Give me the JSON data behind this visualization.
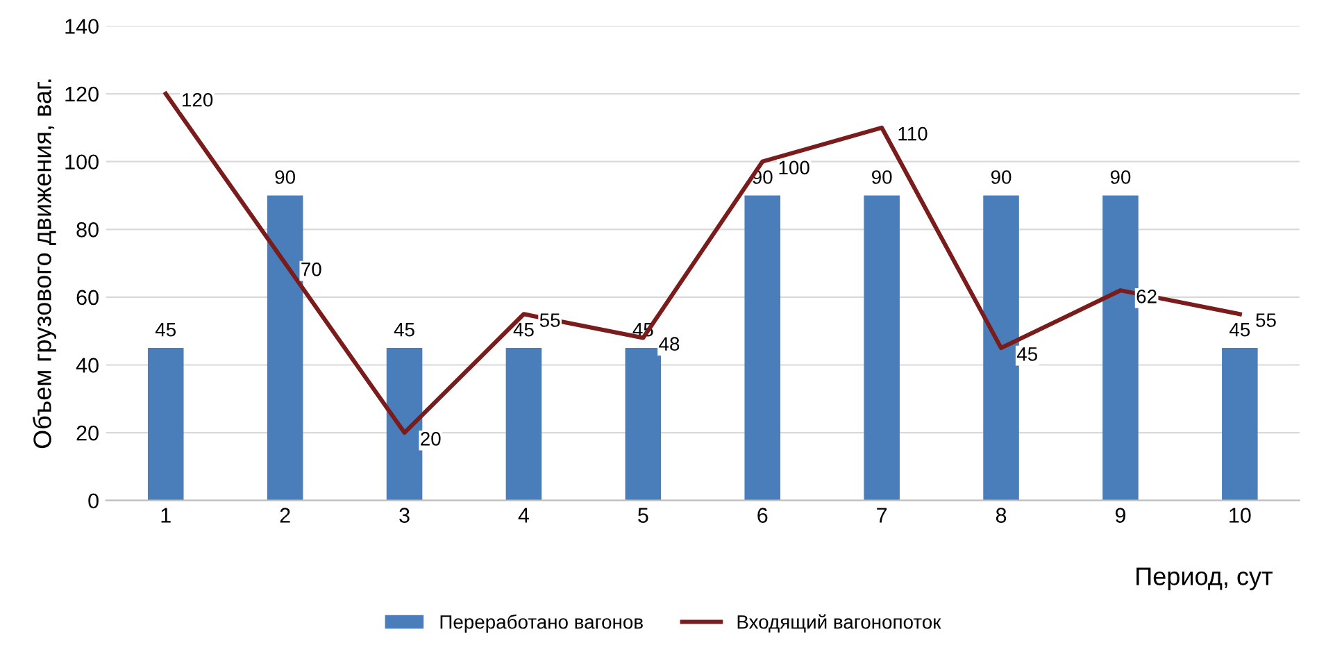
{
  "chart_data": {
    "type": "bar",
    "categories": [
      "1",
      "2",
      "3",
      "4",
      "5",
      "6",
      "7",
      "8",
      "9",
      "10"
    ],
    "series": [
      {
        "name": "Переработано вагонов",
        "color": "#4a7ebb",
        "values": [
          45,
          90,
          45,
          45,
          45,
          90,
          90,
          90,
          90,
          45
        ]
      },
      {
        "name": "Входящий вагонопоток",
        "type": "line",
        "color": "#7b1c1c",
        "values": [
          120,
          70,
          20,
          55,
          48,
          100,
          110,
          45,
          62,
          55
        ]
      }
    ],
    "xlabel": "Период, сут",
    "ylabel": "Объем грузового движения, ваг.",
    "ylim": [
      0,
      140
    ],
    "yticks": [
      0,
      20,
      40,
      60,
      80,
      100,
      120,
      140
    ],
    "grid": "y",
    "legend": "bottom",
    "data_labels": true,
    "marker": "none",
    "line_style": "solid"
  }
}
